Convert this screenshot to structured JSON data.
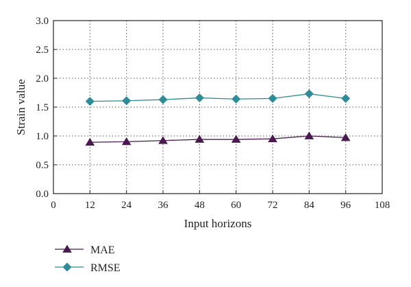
{
  "chart_data": {
    "type": "line",
    "title": "",
    "xlabel": "Input horizons",
    "ylabel": "Strain value",
    "xlim": [
      0,
      108
    ],
    "ylim": [
      0.0,
      3.0
    ],
    "xticks": [
      "0",
      "12",
      "24",
      "36",
      "48",
      "60",
      "72",
      "84",
      "96",
      "108"
    ],
    "yticks": [
      "0.0",
      "0.5",
      "1.0",
      "1.5",
      "2.0",
      "2.5",
      "3.0"
    ],
    "grid": true,
    "legend_position": "bottom-left",
    "x": [
      12,
      24,
      36,
      48,
      60,
      72,
      84,
      96
    ],
    "series": [
      {
        "name": "MAE",
        "marker": "triangle",
        "color": "#4a1a4e",
        "values": [
          0.89,
          0.9,
          0.92,
          0.94,
          0.94,
          0.95,
          1.0,
          0.97
        ]
      },
      {
        "name": "RMSE",
        "marker": "diamond",
        "color": "#2e8b98",
        "values": [
          1.6,
          1.61,
          1.63,
          1.66,
          1.64,
          1.65,
          1.73,
          1.65
        ]
      }
    ]
  }
}
